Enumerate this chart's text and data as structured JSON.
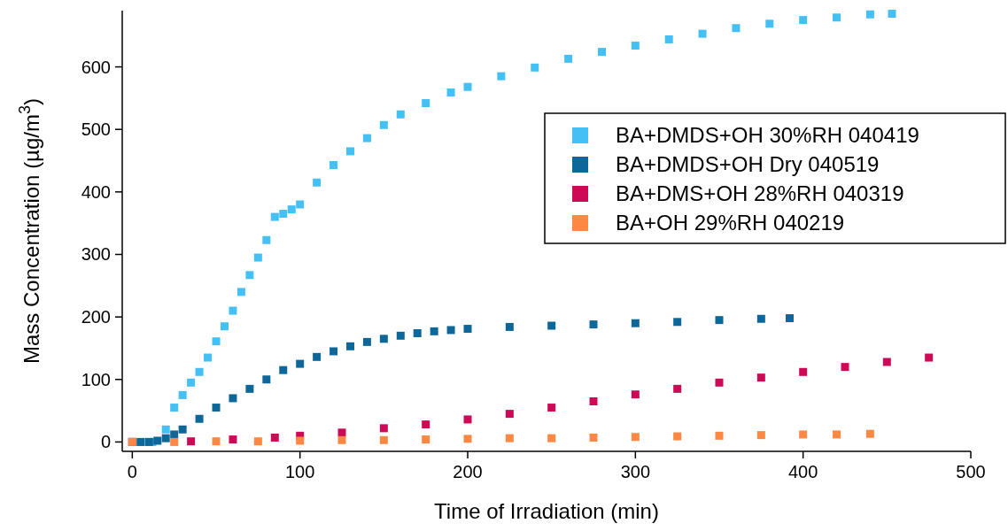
{
  "chart_data": {
    "type": "scatter",
    "xlabel": "Time of Irradiation (min)",
    "ylabel": "Mass Concentration (µg/m$^{3}$)",
    "xlim": [
      -6,
      500
    ],
    "ylim": [
      -15,
      690
    ],
    "xticks": [
      0,
      100,
      200,
      300,
      400,
      500
    ],
    "yticks": [
      0,
      100,
      200,
      300,
      400,
      500,
      600
    ],
    "grid": false,
    "legend": "top right",
    "marker": "square",
    "series": [
      {
        "name": "BA+DMDS+OH 30%RH 040419",
        "color": "#44c0f4",
        "x": [
          0,
          5,
          10,
          12,
          20,
          25,
          30,
          35,
          40,
          45,
          50,
          55,
          60,
          65,
          70,
          75,
          80,
          85,
          90,
          95,
          100,
          110,
          120,
          130,
          140,
          150,
          160,
          175,
          190,
          200,
          220,
          240,
          260,
          280,
          300,
          320,
          340,
          360,
          380,
          400,
          420,
          440,
          453
        ],
        "values": [
          0,
          0,
          0,
          0,
          20,
          55,
          75,
          95,
          112,
          135,
          161,
          185,
          210,
          240,
          267,
          295,
          323,
          360,
          365,
          372,
          380,
          415,
          443,
          465,
          486,
          507,
          524,
          542,
          559,
          568,
          585,
          599,
          613,
          624,
          634,
          644,
          653,
          662,
          669,
          675,
          679,
          684,
          685
        ]
      },
      {
        "name": "BA+DMDS+OH Dry 040519",
        "color": "#0e6799",
        "x": [
          0,
          5,
          10,
          15,
          20,
          25,
          30,
          40,
          50,
          60,
          70,
          80,
          90,
          100,
          110,
          120,
          130,
          140,
          150,
          160,
          170,
          180,
          190,
          200,
          225,
          250,
          275,
          300,
          325,
          350,
          375,
          392
        ],
        "values": [
          0,
          0,
          0,
          2,
          6,
          12,
          20,
          37,
          55,
          70,
          85,
          100,
          115,
          125,
          136,
          145,
          153,
          160,
          165,
          170,
          174,
          177,
          179,
          181,
          184,
          186,
          188,
          190,
          192,
          195,
          197,
          198
        ]
      },
      {
        "name": "BA+DMS+OH 28%RH 040319",
        "color": "#cc0a55",
        "x": [
          0,
          35,
          60,
          85,
          100,
          125,
          150,
          175,
          200,
          225,
          250,
          275,
          300,
          325,
          350,
          375,
          400,
          425,
          450,
          475
        ],
        "values": [
          0,
          1,
          4,
          7,
          10,
          15,
          22,
          28,
          36,
          45,
          55,
          65,
          76,
          85,
          95,
          103,
          112,
          120,
          128,
          135
        ]
      },
      {
        "name": "BA+OH 29%RH 040219",
        "color": "#fc8843",
        "x": [
          0,
          25,
          50,
          75,
          100,
          125,
          150,
          175,
          200,
          225,
          250,
          275,
          300,
          325,
          350,
          375,
          400,
          420,
          440
        ],
        "values": [
          0,
          0,
          1,
          1,
          2,
          3,
          3,
          4,
          5,
          6,
          6,
          7,
          8,
          9,
          10,
          11,
          12,
          12,
          13
        ]
      }
    ]
  }
}
